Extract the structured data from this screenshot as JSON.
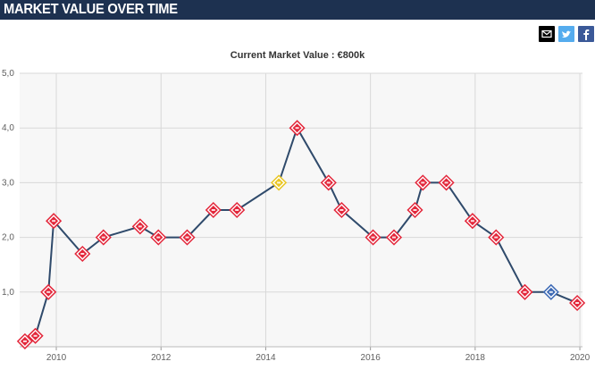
{
  "header": {
    "title": "MARKET VALUE OVER TIME"
  },
  "share": {
    "email_icon": "envelope-icon",
    "twitter_icon": "twitter-bird-icon",
    "facebook_icon": "facebook-f-icon"
  },
  "colors": {
    "header_bg": "#1d3150",
    "line": "#2f4a6b",
    "plot_bg": "#f7f7f7",
    "grid": "#d8d8d8",
    "club_marker_primary": "#e3263a",
    "club_marker_alt_gold": "#e9c622",
    "club_marker_alt_blue": "#3d6ab5"
  },
  "chart_data": {
    "type": "line",
    "title": "Current Market Value : €800k",
    "xlabel": "",
    "ylabel": "",
    "xlim": [
      2009.3,
      2020.05
    ],
    "ylim": [
      0,
      5
    ],
    "x_ticks": [
      "2010",
      "2012",
      "2014",
      "2016",
      "2018",
      "2020"
    ],
    "y_ticks": [
      "5,0",
      "4,0",
      "3,0",
      "2,0",
      "1,0"
    ],
    "grid": true,
    "series": [
      {
        "marker": "club-crest",
        "points": [
          {
            "x": 2009.4,
            "y": 0.1,
            "club": "red"
          },
          {
            "x": 2009.6,
            "y": 0.2,
            "club": "red"
          },
          {
            "x": 2009.85,
            "y": 1.0,
            "club": "red"
          },
          {
            "x": 2009.95,
            "y": 2.3,
            "club": "red"
          },
          {
            "x": 2010.5,
            "y": 1.7,
            "club": "red"
          },
          {
            "x": 2010.9,
            "y": 2.0,
            "club": "red"
          },
          {
            "x": 2011.6,
            "y": 2.2,
            "club": "red"
          },
          {
            "x": 2011.95,
            "y": 2.0,
            "club": "red"
          },
          {
            "x": 2012.5,
            "y": 2.0,
            "club": "red"
          },
          {
            "x": 2013.0,
            "y": 2.5,
            "club": "red"
          },
          {
            "x": 2013.45,
            "y": 2.5,
            "club": "red"
          },
          {
            "x": 2014.25,
            "y": 3.0,
            "club": "gold"
          },
          {
            "x": 2014.6,
            "y": 4.0,
            "club": "red"
          },
          {
            "x": 2015.2,
            "y": 3.0,
            "club": "red"
          },
          {
            "x": 2015.45,
            "y": 2.5,
            "club": "red"
          },
          {
            "x": 2016.05,
            "y": 2.0,
            "club": "red"
          },
          {
            "x": 2016.45,
            "y": 2.0,
            "club": "red"
          },
          {
            "x": 2016.85,
            "y": 2.5,
            "club": "red"
          },
          {
            "x": 2017.0,
            "y": 3.0,
            "club": "red"
          },
          {
            "x": 2017.45,
            "y": 3.0,
            "club": "red"
          },
          {
            "x": 2017.95,
            "y": 2.3,
            "club": "red"
          },
          {
            "x": 2018.4,
            "y": 2.0,
            "club": "red"
          },
          {
            "x": 2018.95,
            "y": 1.0,
            "club": "red"
          },
          {
            "x": 2019.45,
            "y": 1.0,
            "club": "blue"
          },
          {
            "x": 2019.95,
            "y": 0.8,
            "club": "red"
          }
        ]
      }
    ]
  }
}
